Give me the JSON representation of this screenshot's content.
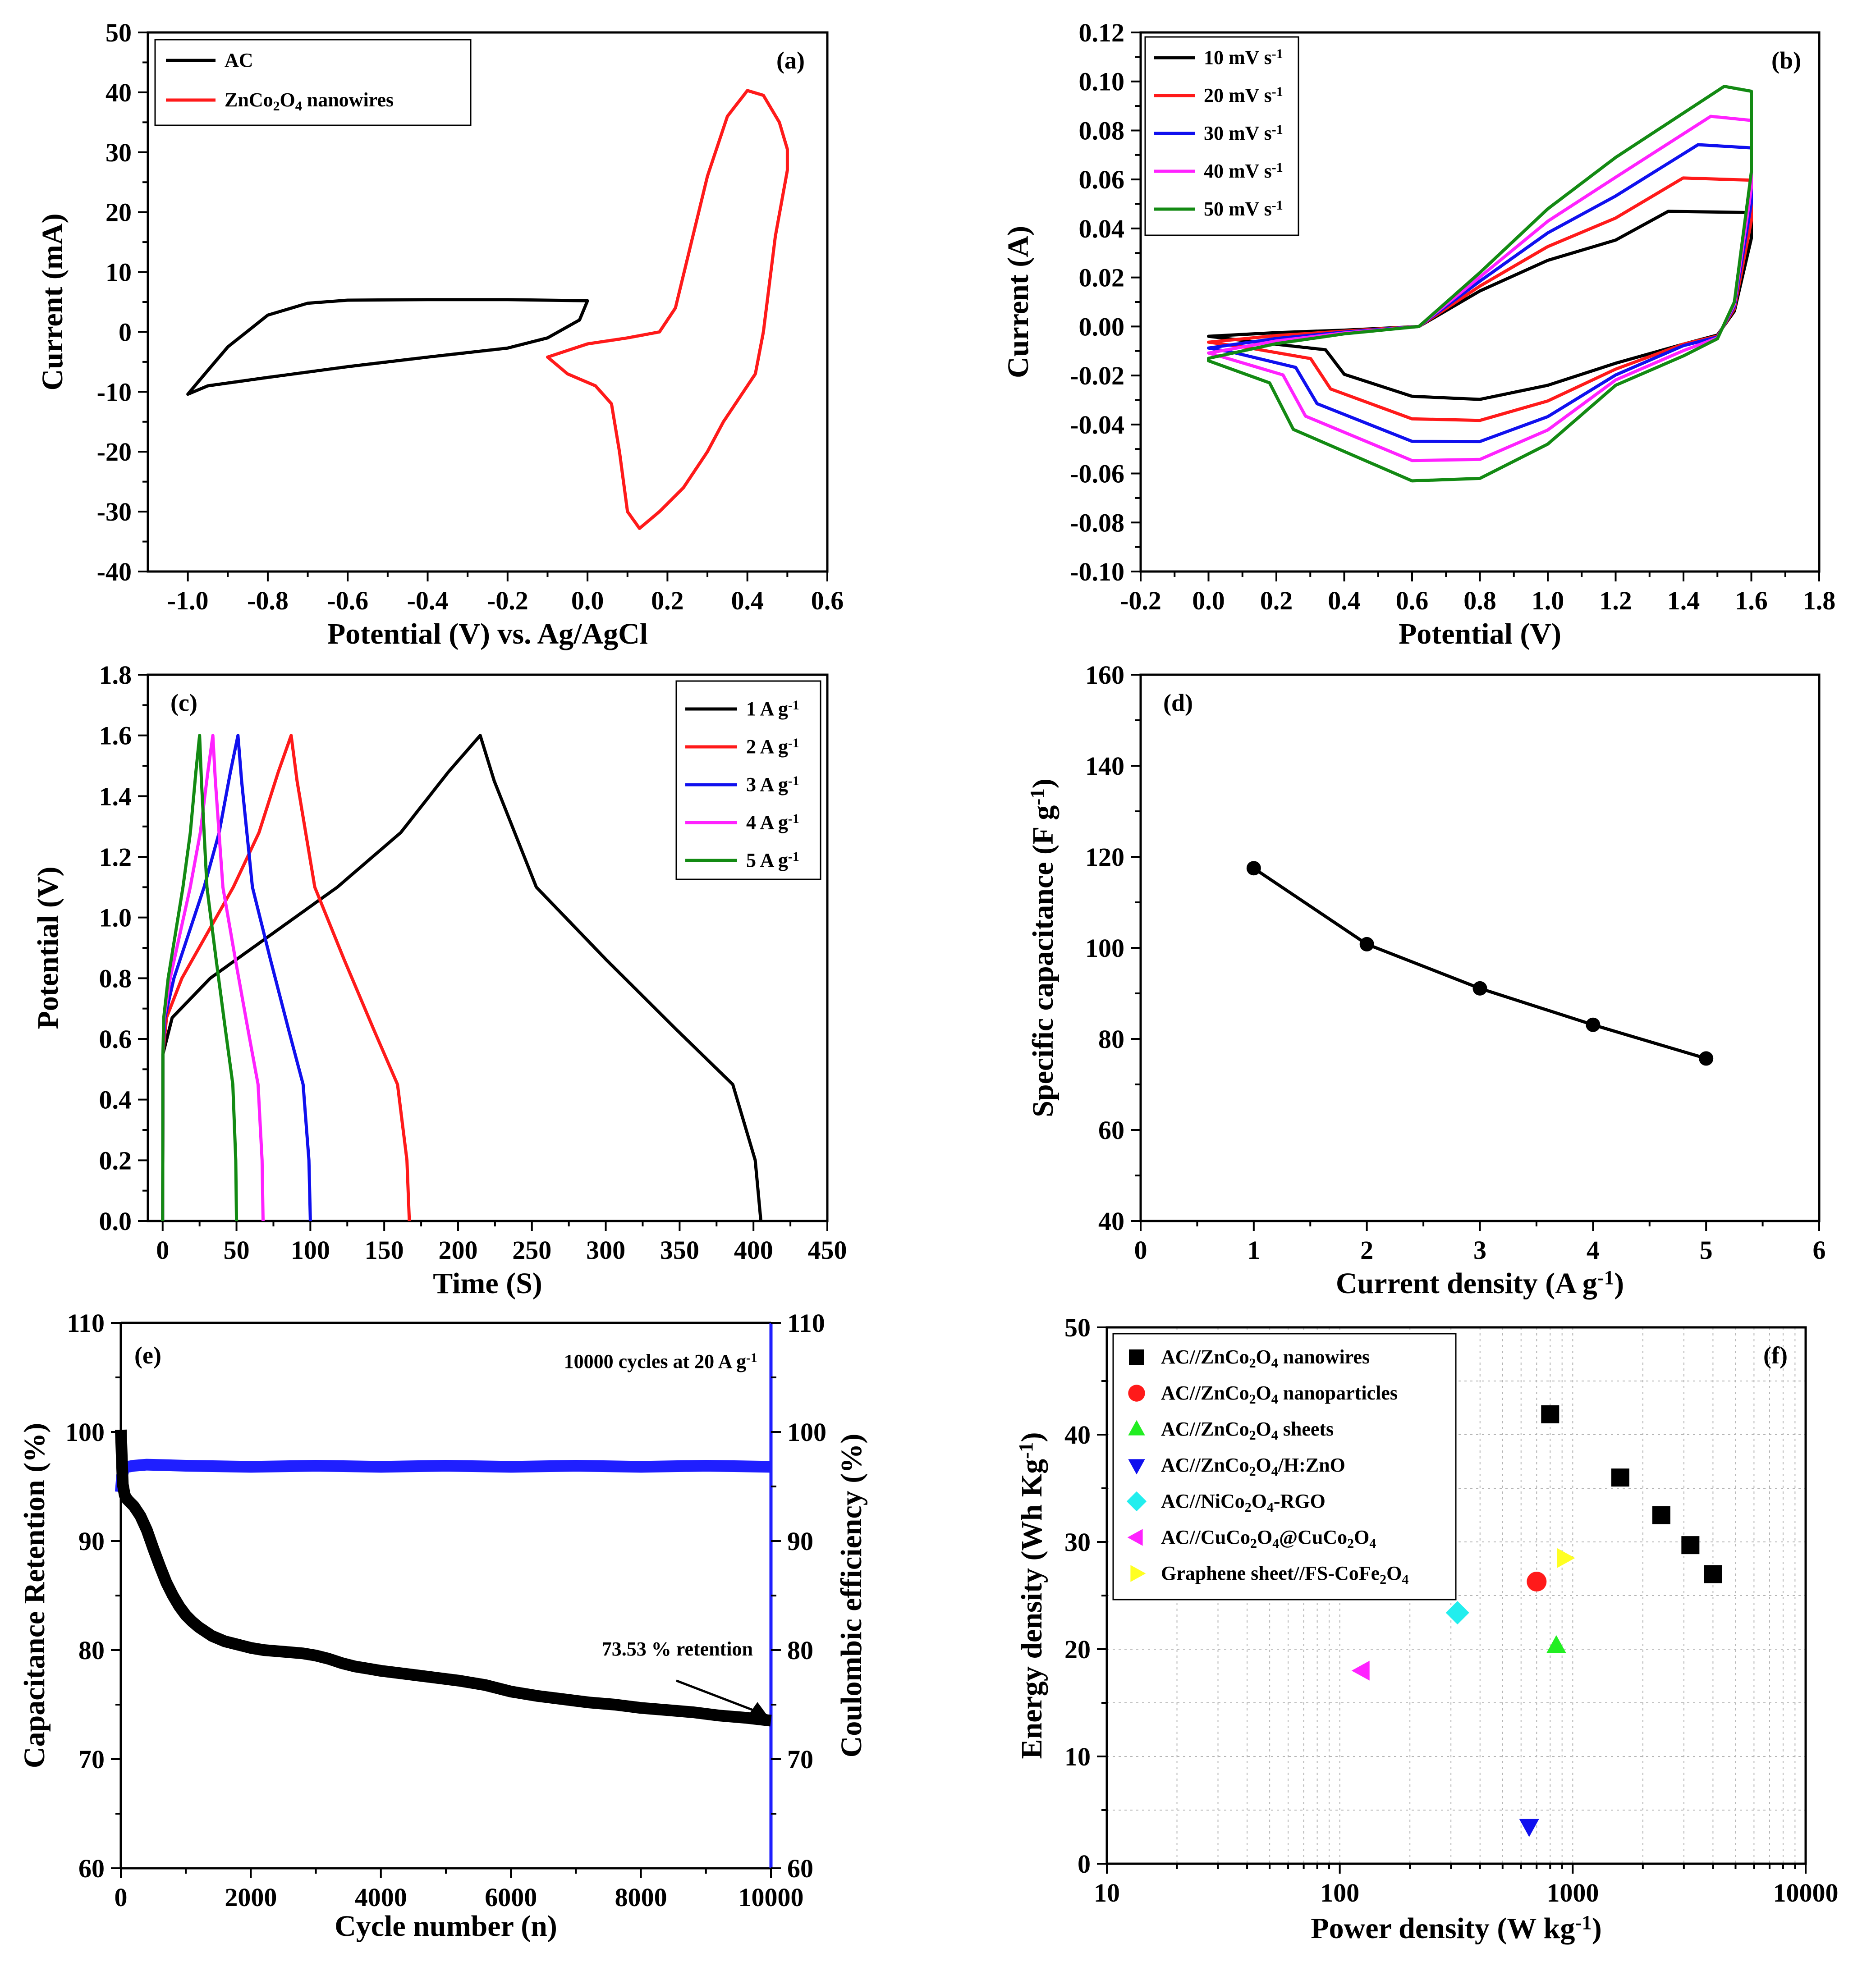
{
  "figure": {
    "panels": [
      "a",
      "b",
      "c",
      "d",
      "e",
      "f"
    ]
  },
  "chart_data": [
    {
      "id": "a",
      "type": "line",
      "panel_label": "(a)",
      "xlabel": "Potential (V) vs. Ag/AgCl",
      "ylabel": "Current (mA)",
      "xlim": [
        -1.1,
        0.6
      ],
      "ylim": [
        -40,
        50
      ],
      "xticks": [
        -1.0,
        -0.8,
        -0.6,
        -0.4,
        -0.2,
        0.0,
        0.2,
        0.4,
        0.6
      ],
      "xtick_labels": [
        "-1.0",
        "-0.8",
        "-0.6",
        "-0.4",
        "-0.2",
        "0.0",
        "0.2",
        "0.4",
        "0.6"
      ],
      "yticks": [
        -40,
        -30,
        -20,
        -10,
        0,
        10,
        20,
        30,
        40,
        50
      ],
      "ytick_labels": [
        "-40",
        "-30",
        "-20",
        "-10",
        "0",
        "10",
        "20",
        "30",
        "40",
        "50"
      ],
      "legend": {
        "position": "top-left"
      },
      "series": [
        {
          "name": "AC",
          "label_main": "AC",
          "color": "#000000",
          "points": [
            [
              0.0,
              5.2
            ],
            [
              -0.2,
              5.4
            ],
            [
              -0.4,
              5.4
            ],
            [
              -0.6,
              5.3
            ],
            [
              -0.7,
              4.8
            ],
            [
              -0.8,
              2.8
            ],
            [
              -0.9,
              -2.5
            ],
            [
              -0.97,
              -8
            ],
            [
              -1.0,
              -10.4
            ],
            [
              -0.95,
              -9.0
            ],
            [
              -0.8,
              -7.6
            ],
            [
              -0.6,
              -5.8
            ],
            [
              -0.4,
              -4.2
            ],
            [
              -0.2,
              -2.7
            ],
            [
              -0.1,
              -1.0
            ],
            [
              -0.02,
              2.0
            ],
            [
              0.0,
              5.2
            ]
          ]
        },
        {
          "name": "ZnCo2O4 nanowires",
          "label_main": "ZnCo",
          "label_sub1": "2",
          "label_mid": "O",
          "label_sub2": "4",
          "label_tail": " nanowires",
          "color": "#ff1a1a",
          "points": [
            [
              -0.1,
              -4.2
            ],
            [
              0.0,
              -2.0
            ],
            [
              0.1,
              -1.0
            ],
            [
              0.18,
              0.0
            ],
            [
              0.22,
              4.0
            ],
            [
              0.26,
              15
            ],
            [
              0.3,
              26
            ],
            [
              0.35,
              36
            ],
            [
              0.4,
              40.3
            ],
            [
              0.44,
              39.5
            ],
            [
              0.48,
              35
            ],
            [
              0.5,
              30.5
            ],
            [
              0.5,
              27
            ],
            [
              0.47,
              16
            ],
            [
              0.44,
              0
            ],
            [
              0.42,
              -7
            ],
            [
              0.38,
              -11
            ],
            [
              0.34,
              -15
            ],
            [
              0.3,
              -20
            ],
            [
              0.24,
              -26
            ],
            [
              0.18,
              -30
            ],
            [
              0.13,
              -32.8
            ],
            [
              0.1,
              -30
            ],
            [
              0.08,
              -20
            ],
            [
              0.06,
              -12
            ],
            [
              0.02,
              -9
            ],
            [
              -0.05,
              -7
            ],
            [
              -0.1,
              -4.2
            ]
          ]
        }
      ]
    },
    {
      "id": "b",
      "type": "line",
      "panel_label": "(b)",
      "xlabel": "Potential (V)",
      "ylabel": "Current (A)",
      "xlim": [
        -0.2,
        1.8
      ],
      "ylim": [
        -0.1,
        0.12
      ],
      "xticks": [
        -0.2,
        0.0,
        0.2,
        0.4,
        0.6,
        0.8,
        1.0,
        1.2,
        1.4,
        1.6,
        1.8
      ],
      "xtick_labels": [
        "-0.2",
        "0.0",
        "0.2",
        "0.4",
        "0.6",
        "0.8",
        "1.0",
        "1.2",
        "1.4",
        "1.6",
        "1.8"
      ],
      "yticks": [
        -0.1,
        -0.08,
        -0.06,
        -0.04,
        -0.02,
        0.0,
        0.02,
        0.04,
        0.06,
        0.08,
        0.1,
        0.12
      ],
      "ytick_labels": [
        "-0.10",
        "-0.08",
        "-0.06",
        "-0.04",
        "-0.02",
        "0.00",
        "0.02",
        "0.04",
        "0.06",
        "0.08",
        "0.10",
        "0.12"
      ],
      "legend": {
        "position": "top-left"
      },
      "series": [
        {
          "name": "10 mV s-1",
          "label_main": "10 mV s",
          "label_sup": "-1",
          "color": "#000000",
          "scale": 0.25
        },
        {
          "name": "20 mV s-1",
          "label_main": "20 mV s",
          "label_sup": "-1",
          "color": "#ff1a1a",
          "scale": 0.45
        },
        {
          "name": "30 mV s-1",
          "label_main": "30 mV s",
          "label_sup": "-1",
          "color": "#1010ee",
          "scale": 0.65
        },
        {
          "name": "40 mV s-1",
          "label_main": "40 mV s",
          "label_sup": "-1",
          "color": "#ff22ff",
          "scale": 0.82
        },
        {
          "name": "50 mV s-1",
          "label_main": "50 mV s",
          "label_sup": "-1",
          "color": "#138a13",
          "scale": 1.0
        }
      ]
    },
    {
      "id": "c",
      "type": "line",
      "panel_label": "(c)",
      "xlabel": "Time (S)",
      "ylabel": "Potential (V)",
      "xlim": [
        -10,
        450
      ],
      "ylim": [
        0.0,
        1.8
      ],
      "xticks": [
        0,
        50,
        100,
        150,
        200,
        250,
        300,
        350,
        400,
        450
      ],
      "xtick_labels": [
        "0",
        "50",
        "100",
        "150",
        "200",
        "250",
        "300",
        "350",
        "400",
        "450"
      ],
      "yticks": [
        0.0,
        0.2,
        0.4,
        0.6,
        0.8,
        1.0,
        1.2,
        1.4,
        1.6,
        1.8
      ],
      "ytick_labels": [
        "0.0",
        "0.2",
        "0.4",
        "0.6",
        "0.8",
        "1.0",
        "1.2",
        "1.4",
        "1.6",
        "1.8"
      ],
      "legend": {
        "position": "top-right"
      },
      "series": [
        {
          "name": "1 A g-1",
          "label_main": "1 A g",
          "label_sup": "-1",
          "color": "#000000",
          "peak_time": 215,
          "end_time": 405
        },
        {
          "name": "2 A g-1",
          "label_main": "2 A g",
          "label_sup": "-1",
          "color": "#ff1a1a",
          "peak_time": 87,
          "end_time": 167
        },
        {
          "name": "3 A g-1",
          "label_main": "3 A g",
          "label_sup": "-1",
          "color": "#1010ee",
          "peak_time": 51,
          "end_time": 100
        },
        {
          "name": "4 A g-1",
          "label_main": "4 A g",
          "label_sup": "-1",
          "color": "#ff22ff",
          "peak_time": 34,
          "end_time": 68
        },
        {
          "name": "5 A g-1",
          "label_main": "5 A g",
          "label_sup": "-1",
          "color": "#138a13",
          "peak_time": 25,
          "end_time": 50
        }
      ]
    },
    {
      "id": "d",
      "type": "line",
      "panel_label": "(d)",
      "xlabel_main": "Current density (A g",
      "xlabel_sup": "-1",
      "xlabel_tail": ")",
      "ylabel_main": "Specific capacitance (F g",
      "ylabel_sup": "-1",
      "ylabel_tail": ")",
      "xlim": [
        0,
        6
      ],
      "ylim": [
        40,
        160
      ],
      "xticks": [
        0,
        1,
        2,
        3,
        4,
        5,
        6
      ],
      "xtick_labels": [
        "0",
        "1",
        "2",
        "3",
        "4",
        "5",
        "6"
      ],
      "yticks": [
        40,
        60,
        80,
        100,
        120,
        140,
        160
      ],
      "ytick_labels": [
        "40",
        "60",
        "80",
        "100",
        "120",
        "140",
        "160"
      ],
      "x": [
        1,
        2,
        3,
        4,
        5
      ],
      "y": [
        117.5,
        100.8,
        91.1,
        83.1,
        75.7
      ]
    },
    {
      "id": "e",
      "type": "line",
      "panel_label": "(e)",
      "xlabel": "Cycle number (n)",
      "ylabel": "Capacitance Retention (%)",
      "ylabel_right": "Coulombic efficiency (%)",
      "xlim": [
        0,
        10000
      ],
      "ylim": [
        60,
        110
      ],
      "ylim_right": [
        60,
        110
      ],
      "xticks": [
        0,
        2000,
        4000,
        6000,
        8000,
        10000
      ],
      "xtick_labels": [
        "0",
        "2000",
        "4000",
        "6000",
        "8000",
        "10000"
      ],
      "yticks": [
        60,
        70,
        80,
        90,
        100,
        110
      ],
      "ytick_labels": [
        "60",
        "70",
        "80",
        "90",
        "100",
        "110"
      ],
      "right_color": "#1f1fff",
      "annotation_cycles_main": "10000 cycles at 20 A g",
      "annotation_cycles_sup": "-1",
      "annotation_retention": "73.53 % retention",
      "retention": {
        "x": [
          0,
          30,
          60,
          100,
          200,
          300,
          400,
          500,
          600,
          700,
          800,
          900,
          1000,
          1100,
          1200,
          1400,
          1600,
          1800,
          2000,
          2200,
          2400,
          2600,
          2800,
          3000,
          3200,
          3400,
          3600,
          3800,
          4000,
          4400,
          4800,
          5200,
          5600,
          6000,
          6400,
          6800,
          7200,
          7600,
          8000,
          8400,
          8800,
          9200,
          9600,
          10000
        ],
        "y": [
          100.2,
          95.2,
          94.2,
          93.8,
          93.2,
          92.3,
          91.0,
          89.3,
          87.7,
          86.2,
          85.0,
          84.0,
          83.2,
          82.6,
          82.1,
          81.3,
          80.8,
          80.5,
          80.2,
          80.0,
          79.9,
          79.8,
          79.7,
          79.5,
          79.2,
          78.8,
          78.5,
          78.3,
          78.1,
          77.8,
          77.5,
          77.2,
          76.8,
          76.2,
          75.8,
          75.5,
          75.2,
          75.0,
          74.7,
          74.5,
          74.3,
          74.0,
          73.8,
          73.53
        ]
      },
      "coulombic": {
        "x": [
          0,
          20,
          40,
          60,
          100,
          200,
          400,
          1000,
          2000,
          3000,
          4000,
          5000,
          6000,
          7000,
          8000,
          9000,
          10000
        ],
        "y": [
          94.5,
          96.0,
          96.5,
          96.7,
          96.8,
          96.9,
          97.0,
          96.9,
          96.8,
          96.9,
          96.8,
          96.9,
          96.8,
          96.9,
          96.8,
          96.9,
          96.8
        ]
      }
    },
    {
      "id": "f",
      "type": "scatter",
      "panel_label": "(f)",
      "xlabel_main": "Power density (W kg",
      "xlabel_sup": "-1",
      "xlabel_tail": ")",
      "ylabel_main": "Energy density (Wh Kg",
      "ylabel_sup": "-1",
      "ylabel_tail": ")",
      "xscale": "log",
      "xlim": [
        10,
        10000
      ],
      "ylim": [
        0,
        50
      ],
      "xticks": [
        10,
        100,
        1000,
        10000
      ],
      "xtick_labels": [
        "10",
        "100",
        "1000",
        "10000"
      ],
      "yticks": [
        0,
        10,
        20,
        30,
        40,
        50
      ],
      "ytick_labels": [
        "0",
        "10",
        "20",
        "30",
        "40",
        "50"
      ],
      "legend": {
        "position": "top-left"
      },
      "series": [
        {
          "name": "AC//ZnCo2O4 nanowires",
          "l1": "AC//ZnCo",
          "s1": "2",
          "l2": "O",
          "s2": "4",
          "l3": " nanowires",
          "color": "#000000",
          "marker": "square",
          "points": [
            [
              800,
              41.9
            ],
            [
              1600,
              36.0
            ],
            [
              2400,
              32.5
            ],
            [
              3200,
              29.7
            ],
            [
              4000,
              27.0
            ]
          ]
        },
        {
          "name": "AC//ZnCo2O4 nanoparticles",
          "l1": "AC//ZnCo",
          "s1": "2",
          "l2": "O",
          "s2": "4",
          "l3": " nanoparticles",
          "color": "#ff1a1a",
          "marker": "circle",
          "points": [
            [
              700,
              26.3
            ]
          ]
        },
        {
          "name": "AC//ZnCo2O4 sheets",
          "l1": "AC//ZnCo",
          "s1": "2",
          "l2": "O",
          "s2": "4",
          "l3": " sheets",
          "color": "#22ee22",
          "marker": "triangle-up",
          "points": [
            [
              850,
              20.3
            ]
          ]
        },
        {
          "name": "AC//ZnCo2O4/H:ZnO",
          "l1": "AC//ZnCo",
          "s1": "2",
          "l2": "O",
          "s2": "4",
          "l3": "/H:ZnO",
          "color": "#1010ee",
          "marker": "triangle-down",
          "points": [
            [
              650,
              3.5
            ]
          ]
        },
        {
          "name": "AC//NiCo2O4-RGO",
          "l1": "AC//NiCo",
          "s1": "2",
          "l2": "O",
          "s2": "4",
          "l3": "-RGO",
          "color": "#22eeee",
          "marker": "diamond",
          "points": [
            [
              320,
              23.4
            ]
          ]
        },
        {
          "name": "AC//CuCo2O4@CuCo2O4",
          "l1": "AC//CuCo",
          "s1": "2",
          "l2": "O",
          "s2": "4",
          "l3": "@CuCo",
          "s3": "2",
          "l4": "O",
          "s4": "4",
          "color": "#ff22ff",
          "marker": "triangle-left",
          "points": [
            [
              125,
              18.0
            ]
          ]
        },
        {
          "name": "Graphene sheet//FS-CoFe2O4",
          "l1": "Graphene sheet//FS-CoFe",
          "s1": "2",
          "l2": "O",
          "s2": "4",
          "l3": "",
          "color": "#ffff22",
          "marker": "triangle-right",
          "points": [
            [
              920,
              28.5
            ]
          ]
        }
      ]
    }
  ]
}
